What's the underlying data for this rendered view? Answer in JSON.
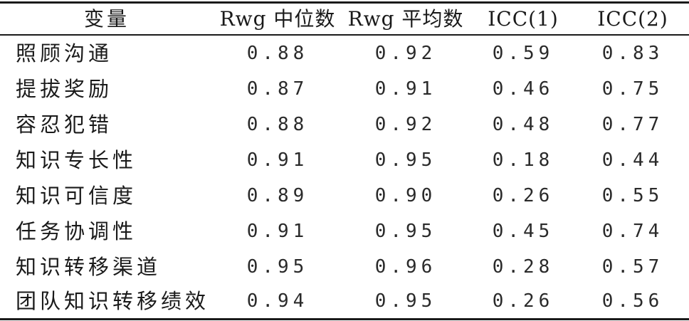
{
  "table": {
    "headers": {
      "variable": "变量",
      "rwg_median": "Rwg 中位数",
      "rwg_mean": "Rwg 平均数",
      "icc1": "ICC(1)",
      "icc2": "ICC(2)"
    },
    "rows": [
      {
        "variable": "照顾沟通",
        "rwg_median": "0.88",
        "rwg_mean": "0.92",
        "icc1": "0.59",
        "icc2": "0.83"
      },
      {
        "variable": "提拔奖励",
        "rwg_median": "0.87",
        "rwg_mean": "0.91",
        "icc1": "0.46",
        "icc2": "0.75"
      },
      {
        "variable": "容忍犯错",
        "rwg_median": "0.88",
        "rwg_mean": "0.92",
        "icc1": "0.48",
        "icc2": "0.77"
      },
      {
        "variable": "知识专长性",
        "rwg_median": "0.91",
        "rwg_mean": "0.95",
        "icc1": "0.18",
        "icc2": "0.44"
      },
      {
        "variable": "知识可信度",
        "rwg_median": "0.89",
        "rwg_mean": "0.90",
        "icc1": "0.26",
        "icc2": "0.55"
      },
      {
        "variable": "任务协调性",
        "rwg_median": "0.91",
        "rwg_mean": "0.95",
        "icc1": "0.45",
        "icc2": "0.74"
      },
      {
        "variable": "知识转移渠道",
        "rwg_median": "0.95",
        "rwg_mean": "0.96",
        "icc1": "0.28",
        "icc2": "0.57"
      },
      {
        "variable": "团队知识转移绩效",
        "rwg_median": "0.94",
        "rwg_mean": "0.95",
        "icc1": "0.26",
        "icc2": "0.56"
      }
    ]
  }
}
